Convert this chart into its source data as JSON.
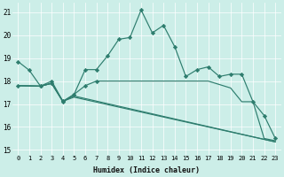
{
  "xlabel": "Humidex (Indice chaleur)",
  "bg_color": "#cceee8",
  "line_color": "#2e7d6e",
  "xlim": [
    -0.5,
    23.5
  ],
  "ylim": [
    14.8,
    21.4
  ],
  "yticks": [
    15,
    16,
    17,
    18,
    19,
    20,
    21
  ],
  "xticks": [
    0,
    1,
    2,
    3,
    4,
    5,
    6,
    7,
    8,
    9,
    10,
    11,
    12,
    13,
    14,
    15,
    16,
    17,
    18,
    19,
    20,
    21,
    22,
    23
  ],
  "line1_x": [
    0,
    1,
    2,
    3,
    4,
    5,
    6,
    7,
    8,
    9,
    10,
    11,
    12,
    13,
    14,
    15,
    16,
    17,
    18,
    19,
    20,
    21,
    22,
    23
  ],
  "line1_y": [
    18.85,
    18.47,
    17.78,
    18.0,
    17.12,
    17.42,
    18.5,
    18.5,
    19.1,
    19.82,
    19.9,
    21.1,
    20.1,
    20.43,
    19.5,
    18.2,
    18.5,
    18.62,
    18.2,
    18.3,
    18.3,
    17.1,
    16.5,
    15.5
  ],
  "line2_x": [
    0,
    2,
    3,
    4,
    5,
    6,
    7,
    14,
    15,
    16,
    17,
    18,
    19,
    20,
    21,
    22,
    23
  ],
  "line2_y": [
    17.8,
    17.78,
    17.9,
    17.1,
    17.42,
    17.8,
    18.0,
    18.0,
    18.0,
    18.0,
    18.0,
    17.85,
    17.7,
    17.1,
    17.1,
    15.5,
    15.4
  ],
  "line3_x": [
    0,
    2,
    3,
    4,
    5,
    23
  ],
  "line3_y": [
    17.8,
    17.78,
    17.9,
    17.12,
    17.35,
    15.35
  ],
  "line4_x": [
    0,
    2,
    3,
    4,
    5,
    23
  ],
  "line4_y": [
    17.8,
    17.78,
    17.9,
    17.12,
    17.3,
    15.35
  ],
  "line1_markers_x": [
    0,
    1,
    2,
    3,
    4,
    5,
    6,
    7,
    8,
    9,
    10,
    11,
    12,
    13,
    14,
    15,
    16,
    17,
    18,
    19,
    20,
    21,
    22,
    23
  ],
  "line1_markers_y": [
    18.85,
    18.47,
    17.78,
    18.0,
    17.12,
    17.42,
    18.5,
    18.5,
    19.1,
    19.82,
    19.9,
    21.1,
    20.1,
    20.43,
    19.5,
    18.2,
    18.5,
    18.62,
    18.2,
    18.3,
    18.3,
    17.1,
    16.5,
    15.5
  ],
  "line2_markers_x": [
    0,
    2,
    3,
    4,
    5,
    6,
    7
  ],
  "line2_markers_y": [
    17.8,
    17.78,
    17.9,
    17.1,
    17.42,
    17.8,
    18.0
  ]
}
